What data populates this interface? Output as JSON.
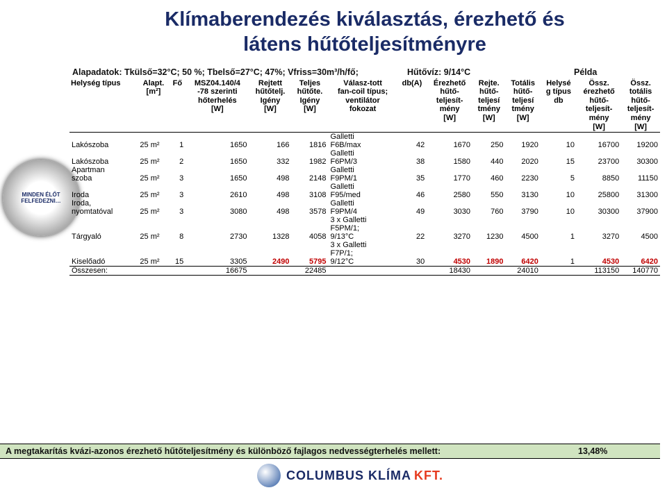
{
  "title_line1": "Klímaberendezés kiválasztás, érezhető és",
  "title_line2": "látens hűtőteljesítményre",
  "meta": {
    "left": "Alapadatok: Tkülső=32°C; 50 %; Tbelső=27°C; 47%; Vfriss=30m³/h/fő;",
    "mid": "Hűtővíz: 9/14°C",
    "right": "Példa"
  },
  "headers": [
    "Helység típus",
    "Alapt.\n[m²]",
    "Fő",
    "MSZ04.140/4\n-78 szerinti\nhőterhelés\n[W]",
    "Rejtett\nhűtőtelj.\nIgény\n[W]",
    "Teljes\nhűtőte.\nIgény\n[W]",
    "Válasz-tott\nfan-coil típus;\nventilátor\nfokozat",
    "db(A)",
    "Érezhető\nhűtő-\nteljesít-\nmény\n[W]",
    "Rejte.\nhűtő-\nteljesí\ntmény\n[W]",
    "Totális\nhűtő-\nteljesí\ntmény\n[W]",
    "Helysé\ng típus\ndb",
    "Össz.\nérezhető\nhűtő-\nteljesít-\nmény\n[W]",
    "Össz.\ntotális\nhűtő-\nteljesít-\nmény\n[W]"
  ],
  "rows": [
    {
      "room": "Lakószoba",
      "area": "25 m²",
      "ppl": "1",
      "load": "1650",
      "hidden": "166",
      "total": "1816",
      "fan": "Galletti\nF6B/max",
      "db": "42",
      "sens": "1670",
      "lat": "250",
      "tot": "1920",
      "cnt": "10",
      "sumS": "16700",
      "sumT": "19200",
      "hl": false
    },
    {
      "room": "Lakószoba",
      "area": "25 m²",
      "ppl": "2",
      "load": "1650",
      "hidden": "332",
      "total": "1982",
      "fan": "Galletti\nF6PM/3",
      "db": "38",
      "sens": "1580",
      "lat": "440",
      "tot": "2020",
      "cnt": "15",
      "sumS": "23700",
      "sumT": "30300",
      "hl": false
    },
    {
      "room": "Apartman\nszoba",
      "area": "25 m²",
      "ppl": "3",
      "load": "1650",
      "hidden": "498",
      "total": "2148",
      "fan": "Galletti\nF9PM/1",
      "db": "35",
      "sens": "1770",
      "lat": "460",
      "tot": "2230",
      "cnt": "5",
      "sumS": "8850",
      "sumT": "11150",
      "hl": false
    },
    {
      "room": "Iroda",
      "area": "25 m²",
      "ppl": "3",
      "load": "2610",
      "hidden": "498",
      "total": "3108",
      "fan": "Galletti\nF95/med",
      "db": "46",
      "sens": "2580",
      "lat": "550",
      "tot": "3130",
      "cnt": "10",
      "sumS": "25800",
      "sumT": "31300",
      "hl": false
    },
    {
      "room": "Iroda,\nnyomtatóval",
      "area": "25 m²",
      "ppl": "3",
      "load": "3080",
      "hidden": "498",
      "total": "3578",
      "fan": "Galletti\nF9PM/4",
      "db": "49",
      "sens": "3030",
      "lat": "760",
      "tot": "3790",
      "cnt": "10",
      "sumS": "30300",
      "sumT": "37900",
      "hl": false
    },
    {
      "room": "Tárgyaló",
      "area": "25 m²",
      "ppl": "8",
      "load": "2730",
      "hidden": "1328",
      "total": "4058",
      "fan": "3 x Galletti\nF5PM/1;\n9/13°C",
      "db": "22",
      "sens": "3270",
      "lat": "1230",
      "tot": "4500",
      "cnt": "1",
      "sumS": "3270",
      "sumT": "4500",
      "hl": false
    },
    {
      "room": "Kiselőadó",
      "area": "25 m²",
      "ppl": "15",
      "load": "3305",
      "hidden": "2490",
      "total": "5795",
      "fan": "3 x Galletti\nF7P/1;\n9/12°C",
      "db": "30",
      "sens": "4530",
      "lat": "1890",
      "tot": "6420",
      "cnt": "1",
      "sumS": "4530",
      "sumT": "6420",
      "hl": true
    }
  ],
  "totals": {
    "label": "Összesen:",
    "load": "16675",
    "total": "22485",
    "sens": "18430",
    "tot": "24010",
    "sumS": "113150",
    "sumT": "140770"
  },
  "savings_text": "A megtakarítás kvázi-azonos érezhető hűtőteljesítmény és különböző fajlagos nedvességterhelés mellett:",
  "savings_pct": "13,48%",
  "logo_text": "COLUMBUS KLÍMA",
  "logo_kft": "KFT.",
  "badge_text": "MINDEN ÉLŐT FELFEDEZNI…"
}
